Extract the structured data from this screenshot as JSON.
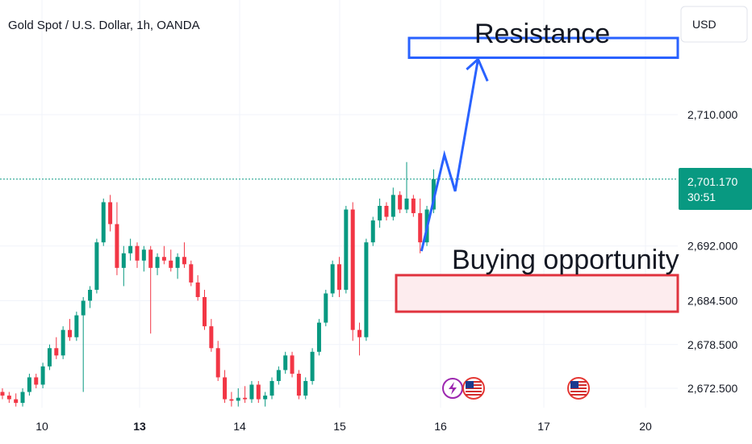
{
  "header": {
    "title": "Gold Spot / U.S. Dollar, 1h, OANDA",
    "currency": "USD"
  },
  "price_tag": {
    "price": "2,701.170",
    "countdown": "30:51",
    "color": "#089981"
  },
  "colors": {
    "up": "#089981",
    "down": "#f23645",
    "grid": "#f0f3fa",
    "resistance": "#2962ff",
    "support": "#e0343f",
    "path": "#2962ff"
  },
  "chart_data": {
    "type": "candlestick",
    "title": "Gold Spot / U.S. Dollar, 1h, OANDA",
    "y_ticks": [
      {
        "value": 2710.0,
        "label": "2,710.000"
      },
      {
        "value": 2692.0,
        "label": "2,692.000"
      },
      {
        "value": 2684.5,
        "label": "2,684.500"
      },
      {
        "value": 2678.5,
        "label": "2,678.500"
      },
      {
        "value": 2672.5,
        "label": "2,672.500"
      }
    ],
    "x_ticks": [
      {
        "label": "10",
        "bold": false
      },
      {
        "label": "13",
        "bold": true
      },
      {
        "label": "14",
        "bold": false
      },
      {
        "label": "15",
        "bold": false
      },
      {
        "label": "16",
        "bold": false
      },
      {
        "label": "17",
        "bold": false
      },
      {
        "label": "20",
        "bold": false
      }
    ],
    "last_price": 2701.17,
    "ohlc": [
      [
        2672.0,
        2672.5,
        2671.0,
        2671.5
      ],
      [
        2671.5,
        2672.0,
        2670.5,
        2671.0
      ],
      [
        2671.0,
        2671.8,
        2670.0,
        2670.5
      ],
      [
        2670.5,
        2672.5,
        2670.0,
        2672.0
      ],
      [
        2672.0,
        2674.5,
        2671.5,
        2674.0
      ],
      [
        2674.0,
        2674.5,
        2672.5,
        2673.0
      ],
      [
        2673.0,
        2676.0,
        2672.5,
        2675.5
      ],
      [
        2675.5,
        2678.5,
        2675.0,
        2678.0
      ],
      [
        2678.0,
        2679.5,
        2676.5,
        2677.0
      ],
      [
        2677.0,
        2681.0,
        2676.5,
        2680.5
      ],
      [
        2680.5,
        2682.0,
        2679.0,
        2679.5
      ],
      [
        2679.5,
        2683.0,
        2679.0,
        2682.5
      ],
      [
        2682.5,
        2685.0,
        2672.0,
        2684.5
      ],
      [
        2684.5,
        2686.5,
        2683.5,
        2686.0
      ],
      [
        2686.0,
        2693.0,
        2685.5,
        2692.5
      ],
      [
        2692.5,
        2698.5,
        2692.0,
        2698.0
      ],
      [
        2698.0,
        2699.0,
        2694.0,
        2695.0
      ],
      [
        2695.0,
        2698.0,
        2688.0,
        2689.0
      ],
      [
        2689.0,
        2692.0,
        2686.5,
        2691.0
      ],
      [
        2691.0,
        2693.0,
        2690.0,
        2692.0
      ],
      [
        2692.0,
        2692.5,
        2689.0,
        2690.0
      ],
      [
        2690.0,
        2692.0,
        2688.5,
        2691.5
      ],
      [
        2691.5,
        2692.0,
        2680.0,
        2689.0
      ],
      [
        2689.0,
        2691.0,
        2688.0,
        2690.5
      ],
      [
        2690.5,
        2692.0,
        2689.5,
        2690.0
      ],
      [
        2690.0,
        2691.5,
        2688.5,
        2689.0
      ],
      [
        2689.0,
        2691.0,
        2687.5,
        2690.5
      ],
      [
        2690.5,
        2692.5,
        2689.0,
        2689.5
      ],
      [
        2689.5,
        2690.0,
        2686.5,
        2687.0
      ],
      [
        2687.0,
        2688.0,
        2684.5,
        2685.0
      ],
      [
        2685.0,
        2686.0,
        2680.5,
        2681.0
      ],
      [
        2681.0,
        2682.0,
        2677.5,
        2678.0
      ],
      [
        2678.0,
        2679.0,
        2673.5,
        2674.0
      ],
      [
        2674.0,
        2675.0,
        2670.5,
        2671.0
      ],
      [
        2671.0,
        2672.0,
        2670.0,
        2670.8
      ],
      [
        2670.8,
        2672.5,
        2670.0,
        2671.2
      ],
      [
        2671.2,
        2672.8,
        2670.5,
        2671.0
      ],
      [
        2671.0,
        2673.5,
        2670.5,
        2673.0
      ],
      [
        2673.0,
        2673.5,
        2670.5,
        2671.0
      ],
      [
        2671.0,
        2672.0,
        2670.0,
        2671.5
      ],
      [
        2671.5,
        2674.0,
        2671.0,
        2673.5
      ],
      [
        2673.5,
        2675.5,
        2673.0,
        2675.0
      ],
      [
        2675.0,
        2677.5,
        2674.5,
        2677.0
      ],
      [
        2677.0,
        2677.5,
        2674.0,
        2674.5
      ],
      [
        2674.5,
        2675.0,
        2671.0,
        2671.5
      ],
      [
        2671.5,
        2674.0,
        2671.0,
        2673.5
      ],
      [
        2673.5,
        2678.0,
        2673.0,
        2677.5
      ],
      [
        2677.5,
        2682.0,
        2677.0,
        2681.5
      ],
      [
        2681.5,
        2686.0,
        2681.0,
        2685.5
      ],
      [
        2685.5,
        2690.0,
        2685.0,
        2689.5
      ],
      [
        2689.5,
        2690.5,
        2685.0,
        2686.0
      ],
      [
        2686.0,
        2697.5,
        2685.5,
        2697.0
      ],
      [
        2697.0,
        2698.0,
        2679.0,
        2680.5
      ],
      [
        2680.5,
        2681.5,
        2677.0,
        2679.5
      ],
      [
        2679.5,
        2693.0,
        2679.0,
        2692.5
      ],
      [
        2692.5,
        2696.0,
        2692.0,
        2695.5
      ],
      [
        2695.5,
        2698.5,
        2694.5,
        2697.5
      ],
      [
        2697.5,
        2698.0,
        2695.5,
        2696.0
      ],
      [
        2696.0,
        2700.0,
        2695.5,
        2699.0
      ],
      [
        2699.0,
        2699.5,
        2696.5,
        2697.0
      ],
      [
        2697.0,
        2703.5,
        2696.5,
        2698.5
      ],
      [
        2698.5,
        2699.0,
        2696.0,
        2696.5
      ],
      [
        2696.5,
        2698.5,
        2691.0,
        2692.5
      ],
      [
        2692.5,
        2697.5,
        2692.0,
        2697.0
      ],
      [
        2697.0,
        2702.5,
        2696.5,
        2701.17
      ]
    ]
  },
  "annotations": {
    "resistance_label": "Resistance",
    "buying_label": "Buying opportunity",
    "resistance_zone": {
      "top": 2720.5,
      "bottom": 2717.8
    },
    "support_zone": {
      "top": 2688.0,
      "bottom": 2683.0
    },
    "projection": [
      {
        "i": 62.2,
        "p": 2691.3
      },
      {
        "i": 65.6,
        "p": 2704.5
      },
      {
        "i": 67.2,
        "p": 2699.5
      },
      {
        "i": 70.6,
        "p": 2717.6
      }
    ],
    "arrow_head": [
      {
        "i": 68.9,
        "p": 2716.2
      },
      {
        "i": 70.6,
        "p": 2717.6
      },
      {
        "i": 72.0,
        "p": 2714.6
      }
    ]
  },
  "events": [
    {
      "icon": "lightning-icon",
      "bg": "#9c27b0"
    },
    {
      "icon": "us-flag-icon",
      "bg": "#e53935"
    },
    {
      "icon": "us-flag-icon",
      "bg": "#e53935"
    }
  ]
}
